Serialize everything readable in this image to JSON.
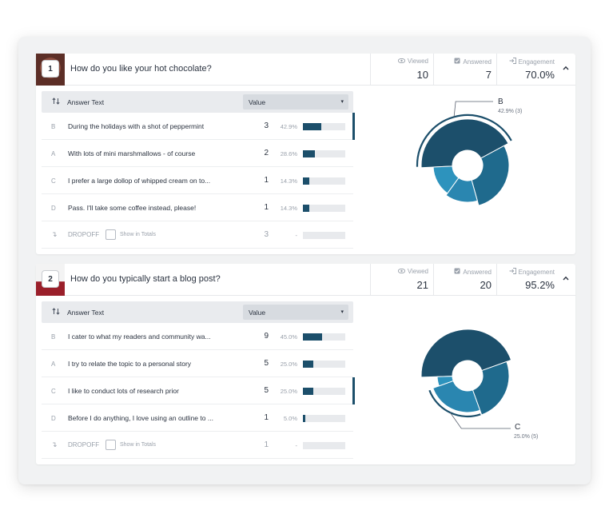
{
  "colors": {
    "dark": "#1c4f6b",
    "mid": "#1f6a8d",
    "light": "#2a86b0",
    "lighter": "#2d93bd",
    "track": "#e8eaed"
  },
  "table_headers": {
    "answer_text": "Answer Text",
    "value": "Value"
  },
  "stat_labels": {
    "viewed": "Viewed",
    "answered": "Answered",
    "engagement": "Engagement"
  },
  "dropoff_label": "DROPOFF",
  "show_in_totals": "Show in Totals",
  "questions": [
    {
      "number": "1",
      "title": "How do you like your hot chocolate?",
      "viewed": "10",
      "answered": "7",
      "engagement": "70.0%",
      "answers": [
        {
          "letter": "B",
          "text": "During the holidays with a shot of peppermint",
          "count": "3",
          "pct": "42.9%",
          "fraction": 0.429,
          "highlighted": true
        },
        {
          "letter": "A",
          "text": "With lots of mini marshmallows - of course",
          "count": "2",
          "pct": "28.6%",
          "fraction": 0.286,
          "highlighted": false
        },
        {
          "letter": "C",
          "text": "I prefer a large dollop of whipped cream on to...",
          "count": "1",
          "pct": "14.3%",
          "fraction": 0.143,
          "highlighted": false
        },
        {
          "letter": "D",
          "text": "Pass.  I'll take some coffee instead, please!",
          "count": "1",
          "pct": "14.3%",
          "fraction": 0.143,
          "highlighted": false
        }
      ],
      "dropoff": {
        "count": "3",
        "pct": "-"
      },
      "chart_callout": {
        "letter": "B",
        "detail": "42.9% (3)"
      }
    },
    {
      "number": "2",
      "title": "How do you typically start a blog post?",
      "viewed": "21",
      "answered": "20",
      "engagement": "95.2%",
      "answers": [
        {
          "letter": "B",
          "text": "I cater to what my readers and community wa...",
          "count": "9",
          "pct": "45.0%",
          "fraction": 0.45,
          "highlighted": false
        },
        {
          "letter": "A",
          "text": "I try to relate the topic to a personal story",
          "count": "5",
          "pct": "25.0%",
          "fraction": 0.25,
          "highlighted": false
        },
        {
          "letter": "C",
          "text": "I like to conduct lots of research prior",
          "count": "5",
          "pct": "25.0%",
          "fraction": 0.25,
          "highlighted": true
        },
        {
          "letter": "D",
          "text": "Before I do anything, I love using an outline to ...",
          "count": "1",
          "pct": "5.0%",
          "fraction": 0.05,
          "highlighted": false
        }
      ],
      "dropoff": {
        "count": "1",
        "pct": "-"
      },
      "chart_callout": {
        "letter": "C",
        "detail": "25.0% (5)"
      }
    }
  ],
  "chart_data": [
    {
      "type": "pie",
      "title": "How do you like your hot chocolate?",
      "categories": [
        "B",
        "A",
        "C",
        "D"
      ],
      "values": [
        42.9,
        28.6,
        14.3,
        14.3
      ],
      "highlighted": "B",
      "annotation": "B 42.9% (3)"
    },
    {
      "type": "pie",
      "title": "How do you typically start a blog post?",
      "categories": [
        "B",
        "A",
        "C",
        "D"
      ],
      "values": [
        45.0,
        25.0,
        25.0,
        5.0
      ],
      "highlighted": "C",
      "annotation": "C 25.0% (5)"
    }
  ]
}
